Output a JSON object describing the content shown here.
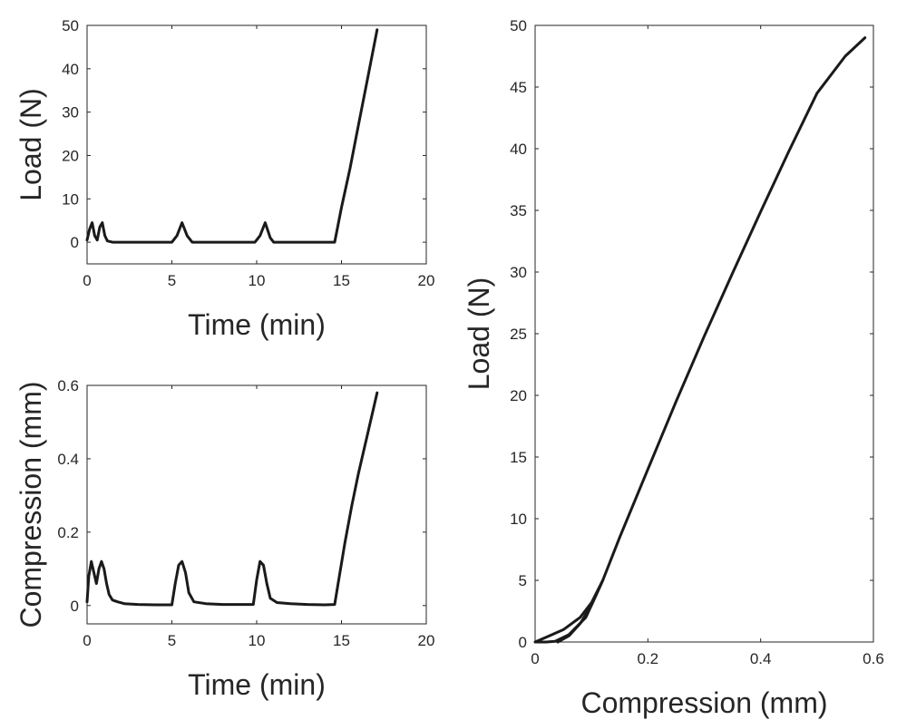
{
  "chart_data": [
    {
      "id": "load-time",
      "type": "line",
      "title": "",
      "xlabel": "Time (min)",
      "ylabel": "Load (N)",
      "xlim": [
        0,
        20
      ],
      "ylim": [
        -5,
        50
      ],
      "xticks": [
        0,
        5,
        10,
        15,
        20
      ],
      "yticks": [
        0,
        10,
        20,
        30,
        40,
        50
      ],
      "grid": false,
      "series": [
        {
          "x": [
            0,
            0.15,
            0.3,
            0.45,
            0.6,
            0.75,
            0.9,
            1.05,
            1.2,
            1.5,
            2,
            3,
            4,
            5,
            5.3,
            5.6,
            5.9,
            6.2,
            7,
            8,
            9,
            9.9,
            10.2,
            10.5,
            10.8,
            11,
            12,
            13,
            14,
            14.6,
            15,
            15.5,
            16,
            16.5,
            17.1
          ],
          "y": [
            0.5,
            3,
            4.5,
            1.5,
            0.5,
            3.5,
            4.5,
            1.5,
            0.3,
            0,
            0,
            0,
            0,
            0,
            1.5,
            4.5,
            1.5,
            0,
            0,
            0,
            0,
            0,
            1.5,
            4.5,
            1,
            0,
            0,
            0,
            0,
            0,
            8,
            17,
            27,
            37,
            49
          ]
        }
      ]
    },
    {
      "id": "compression-time",
      "type": "line",
      "title": "",
      "xlabel": "Time (min)",
      "ylabel": "Compression (mm)",
      "xlim": [
        0,
        20
      ],
      "ylim": [
        -0.05,
        0.6
      ],
      "xticks": [
        0,
        5,
        10,
        15,
        20
      ],
      "yticks": [
        0,
        0.2,
        0.4,
        0.6
      ],
      "grid": false,
      "series": [
        {
          "x": [
            0,
            0.1,
            0.25,
            0.4,
            0.55,
            0.7,
            0.85,
            1.0,
            1.15,
            1.3,
            1.5,
            1.8,
            2.2,
            3,
            4,
            5,
            5.2,
            5.4,
            5.6,
            5.8,
            6.0,
            6.3,
            7,
            8,
            9.8,
            10.0,
            10.2,
            10.4,
            10.6,
            10.8,
            11.2,
            12,
            13,
            14,
            14.6,
            14.8,
            15.2,
            15.6,
            16,
            16.5,
            17.1
          ],
          "y": [
            0.01,
            0.08,
            0.12,
            0.09,
            0.06,
            0.1,
            0.12,
            0.1,
            0.06,
            0.03,
            0.015,
            0.01,
            0.005,
            0.003,
            0.002,
            0.002,
            0.06,
            0.11,
            0.12,
            0.09,
            0.035,
            0.01,
            0.005,
            0.003,
            0.003,
            0.07,
            0.12,
            0.11,
            0.06,
            0.02,
            0.008,
            0.005,
            0.003,
            0.002,
            0.003,
            0.06,
            0.17,
            0.27,
            0.36,
            0.46,
            0.58
          ]
        }
      ]
    },
    {
      "id": "load-compression",
      "type": "line",
      "title": "",
      "xlabel": "Compression (mm)",
      "ylabel": "Load (N)",
      "xlim": [
        0,
        0.6
      ],
      "ylim": [
        0,
        50
      ],
      "xticks": [
        0,
        0.2,
        0.4,
        0.6
      ],
      "yticks": [
        0,
        5,
        10,
        15,
        20,
        25,
        30,
        35,
        40,
        45,
        50
      ],
      "grid": false,
      "series": [
        {
          "x": [
            0,
            0.02,
            0.05,
            0.08,
            0.1,
            0.12,
            0.11,
            0.09,
            0.06,
            0.035,
            0.02,
            0.005,
            0.0
          ],
          "y": [
            0,
            0.4,
            1.0,
            2.0,
            3.2,
            5.0,
            4.0,
            2.0,
            0.6,
            0.05,
            0,
            0,
            0
          ]
        },
        {
          "x": [
            0.04,
            0.06,
            0.08,
            0.1,
            0.12
          ],
          "y": [
            0,
            0.5,
            1.5,
            3.0,
            5.0
          ]
        },
        {
          "x": [
            0.12,
            0.15,
            0.2,
            0.25,
            0.3,
            0.35,
            0.4,
            0.45,
            0.5,
            0.55,
            0.585
          ],
          "y": [
            5.0,
            8.5,
            14.0,
            19.5,
            24.8,
            29.9,
            34.9,
            39.8,
            44.5,
            47.5,
            49.0
          ]
        }
      ]
    }
  ]
}
